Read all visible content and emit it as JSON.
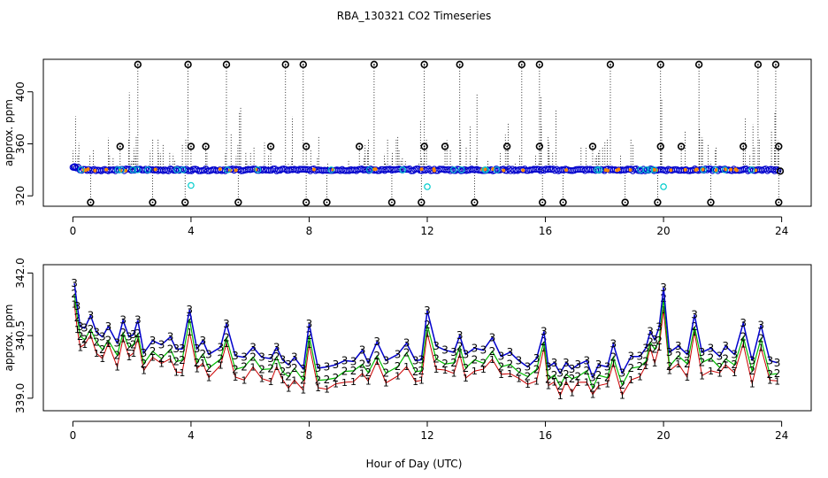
{
  "title": "RBA_130321  CO2 Timeseries",
  "xlabel": "Hour of Day (UTC)",
  "colors": {
    "series1": "#cc0000",
    "series2": "#00bb00",
    "series3": "#0000cc",
    "cyan": "#00cccc",
    "black": "#000000",
    "orange": "#ff8800"
  },
  "chart_data": [
    {
      "type": "scatter",
      "name": "raw",
      "ylabel": "approx. ppm",
      "xlim": [
        -1,
        25
      ],
      "ylim": [
        312,
        425
      ],
      "xticks": [
        0,
        4,
        8,
        12,
        16,
        20,
        24
      ],
      "xtick_labels": [
        "0",
        "4",
        "8",
        "12",
        "16",
        "20",
        "24"
      ],
      "yticks": [
        320,
        360,
        400
      ],
      "ytick_labels": [
        "320",
        "360",
        "400"
      ],
      "baseline": 340,
      "outliers_high_421": [
        2.2,
        3.9,
        5.2,
        7.2,
        7.8,
        10.2,
        11.9,
        13.1,
        15.2,
        15.8,
        18.2,
        19.9,
        21.2,
        23.2,
        23.8
      ],
      "outliers_358": [
        1.6,
        4.0,
        4.5,
        6.7,
        7.9,
        9.7,
        11.9,
        12.6,
        14.7,
        15.8,
        17.6,
        19.9,
        20.6,
        22.7,
        23.9
      ],
      "outliers_low_315": [
        0.6,
        2.7,
        3.8,
        5.6,
        7.9,
        8.6,
        10.8,
        11.8,
        13.6,
        15.9,
        16.6,
        18.7,
        19.8,
        21.6,
        23.9
      ],
      "cyan_points": [
        [
          4.0,
          328
        ],
        [
          12.0,
          327
        ],
        [
          20.0,
          327
        ]
      ],
      "start_point": [
        0.05,
        342
      ]
    },
    {
      "type": "line",
      "name": "smoothed",
      "ylabel": "approx. ppm",
      "xlim": [
        -1,
        25
      ],
      "ylim": [
        338.7,
        342.2
      ],
      "xticks": [
        0,
        4,
        8,
        12,
        16,
        20,
        24
      ],
      "xtick_labels": [
        "0",
        "4",
        "8",
        "12",
        "16",
        "20",
        "24"
      ],
      "yticks": [
        339.0,
        340.5,
        342.0
      ],
      "ytick_labels": [
        "339.0",
        "340.5",
        "342.0"
      ],
      "series": [
        {
          "name": "3",
          "marker": "3",
          "color_key": "series3"
        },
        {
          "name": "2",
          "marker": "2",
          "color_key": "series2"
        },
        {
          "name": "1",
          "marker": "1",
          "color_key": "series1"
        }
      ],
      "knots_series3": [
        [
          0.05,
          341.75
        ],
        [
          0.15,
          341.2
        ],
        [
          0.25,
          340.72
        ],
        [
          0.4,
          340.68
        ],
        [
          0.6,
          340.98
        ],
        [
          0.8,
          340.58
        ],
        [
          1.0,
          340.47
        ],
        [
          1.2,
          340.72
        ],
        [
          1.5,
          340.32
        ],
        [
          1.7,
          340.87
        ],
        [
          1.9,
          340.47
        ],
        [
          2.05,
          340.52
        ],
        [
          2.2,
          340.87
        ],
        [
          2.4,
          340.08
        ],
        [
          2.7,
          340.38
        ],
        [
          3.0,
          340.28
        ],
        [
          3.3,
          340.47
        ],
        [
          3.5,
          340.18
        ],
        [
          3.7,
          340.18
        ],
        [
          3.95,
          341.12
        ],
        [
          4.2,
          340.18
        ],
        [
          4.4,
          340.38
        ],
        [
          4.6,
          340.05
        ],
        [
          5.0,
          340.22
        ],
        [
          5.2,
          340.78
        ],
        [
          5.5,
          340.02
        ],
        [
          5.8,
          339.98
        ],
        [
          6.1,
          340.22
        ],
        [
          6.4,
          339.98
        ],
        [
          6.7,
          339.95
        ],
        [
          6.9,
          340.22
        ],
        [
          7.1,
          339.92
        ],
        [
          7.3,
          339.8
        ],
        [
          7.5,
          339.98
        ],
        [
          7.8,
          339.7
        ],
        [
          8.0,
          340.78
        ],
        [
          8.3,
          339.72
        ],
        [
          8.6,
          339.75
        ],
        [
          8.9,
          339.8
        ],
        [
          9.2,
          339.9
        ],
        [
          9.5,
          339.88
        ],
        [
          9.8,
          340.15
        ],
        [
          10.0,
          339.85
        ],
        [
          10.3,
          340.35
        ],
        [
          10.6,
          339.9
        ],
        [
          11.0,
          340.05
        ],
        [
          11.3,
          340.32
        ],
        [
          11.6,
          339.9
        ],
        [
          11.8,
          339.92
        ],
        [
          12.0,
          341.1
        ],
        [
          12.3,
          340.25
        ],
        [
          12.6,
          340.15
        ],
        [
          12.9,
          340.1
        ],
        [
          13.1,
          340.5
        ],
        [
          13.3,
          340.05
        ],
        [
          13.6,
          340.2
        ],
        [
          13.9,
          340.15
        ],
        [
          14.2,
          340.45
        ],
        [
          14.5,
          340.0
        ],
        [
          14.8,
          340.1
        ],
        [
          15.1,
          339.9
        ],
        [
          15.4,
          339.75
        ],
        [
          15.7,
          339.95
        ],
        [
          15.95,
          340.6
        ],
        [
          16.1,
          339.75
        ],
        [
          16.3,
          339.85
        ],
        [
          16.5,
          339.6
        ],
        [
          16.7,
          339.85
        ],
        [
          16.9,
          339.7
        ],
        [
          17.1,
          339.8
        ],
        [
          17.4,
          339.9
        ],
        [
          17.6,
          339.5
        ],
        [
          17.8,
          339.8
        ],
        [
          18.1,
          339.75
        ],
        [
          18.3,
          340.3
        ],
        [
          18.6,
          339.6
        ],
        [
          18.9,
          340.0
        ],
        [
          19.2,
          340.0
        ],
        [
          19.4,
          340.2
        ],
        [
          19.55,
          340.6
        ],
        [
          19.7,
          340.4
        ],
        [
          19.85,
          340.7
        ],
        [
          20.0,
          341.65
        ],
        [
          20.2,
          340.1
        ],
        [
          20.5,
          340.25
        ],
        [
          20.8,
          340.05
        ],
        [
          21.05,
          341.0
        ],
        [
          21.3,
          340.1
        ],
        [
          21.6,
          340.2
        ],
        [
          21.9,
          340.0
        ],
        [
          22.1,
          340.25
        ],
        [
          22.4,
          340.05
        ],
        [
          22.7,
          340.8
        ],
        [
          23.0,
          339.9
        ],
        [
          23.3,
          340.75
        ],
        [
          23.6,
          339.9
        ],
        [
          23.85,
          339.85
        ]
      ],
      "series2_offset": -0.28,
      "series1_offset": -0.48
    }
  ]
}
